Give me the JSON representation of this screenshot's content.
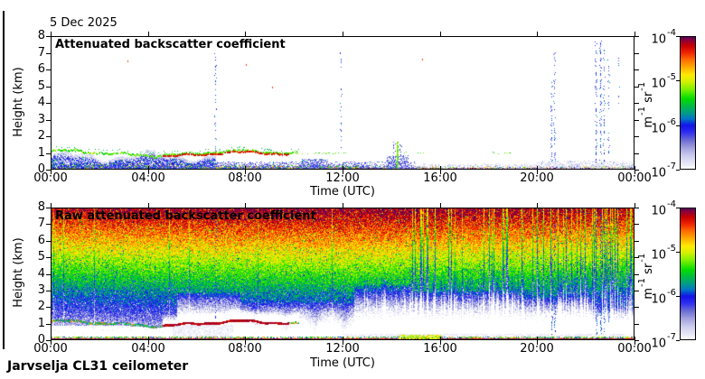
{
  "figure": {
    "date": "5 Dec 2025",
    "footer": "Jarvselja CL31 ceilometer",
    "background": "#ffffff",
    "frame_color": "#000000"
  },
  "seed": 20251205,
  "colormap": {
    "scale": "log10 of attenuated backscatter from 1e-7 (white) to 1e-4 (dark purple)",
    "stops": [
      [
        0,
        "#ffffff"
      ],
      [
        0.04,
        "#e9e9f7"
      ],
      [
        0.1,
        "#cdcdee"
      ],
      [
        0.16,
        "#a2a2de"
      ],
      [
        0.22,
        "#6b6bd4"
      ],
      [
        0.28,
        "#2d2df2"
      ],
      [
        0.33,
        "#1313e8"
      ],
      [
        0.38,
        "#0077c8"
      ],
      [
        0.43,
        "#00a080"
      ],
      [
        0.48,
        "#00bb40"
      ],
      [
        0.53,
        "#00dd00"
      ],
      [
        0.6,
        "#7af000"
      ],
      [
        0.66,
        "#d4f000"
      ],
      [
        0.71,
        "#ffec00"
      ],
      [
        0.77,
        "#ffaa00"
      ],
      [
        0.83,
        "#ff6600"
      ],
      [
        0.88,
        "#ee2200"
      ],
      [
        0.93,
        "#c80000"
      ],
      [
        0.97,
        "#8e0038"
      ],
      [
        1,
        "#58005c"
      ]
    ]
  },
  "chart_data": [
    {
      "id": "attenuated",
      "type": "heatmap",
      "title": "Attenuated backscatter coefficient",
      "xlabel": "Time (UTC)",
      "ylabel": "Height (km)",
      "x_ticks": [
        "00:00",
        "04:00",
        "08:00",
        "12:00",
        "16:00",
        "20:00",
        "00:00"
      ],
      "y_ticks": [
        "8",
        "7",
        "6",
        "5",
        "4",
        "3",
        "2",
        "1",
        "0"
      ],
      "x_range_hours": [
        0,
        24
      ],
      "y_range_km": [
        0,
        8
      ],
      "colorbar": {
        "base": "10",
        "exponents": [
          "-4",
          "-5",
          "-6",
          "-7"
        ],
        "unit_parts": [
          [
            "m",
            "-1"
          ],
          [
            "sr",
            "-1"
          ]
        ],
        "min": "1e-7",
        "max": "1e-4"
      },
      "features": {
        "surface_return_km": 0.15,
        "boundary_layer_hours": [
          0,
          6.8
        ],
        "boundary_layer_top_km": [
          0.5,
          1.0
        ],
        "aerosol_top_line": {
          "hours": [
            0,
            10.2
          ],
          "km": 1.0
        },
        "cloud_base_segment": {
          "hours": [
            4.6,
            9.8
          ],
          "km": 0.9
        },
        "green_plume": {
          "hour": 14.25,
          "km": [
            0.05,
            1.62
          ]
        },
        "green_dot_rows": [
          {
            "hours": [
              10.2,
              12.2
            ],
            "km": 0.95
          },
          {
            "hours": [
              14.45,
              15.6
            ],
            "km": 1.0
          },
          {
            "hours": [
              17.4,
              18.9
            ],
            "km": 1.0
          }
        ],
        "noise_streaks": [
          {
            "hour": 6.78,
            "km": [
              1.0,
              7.3
            ],
            "density": 0.5
          },
          {
            "hour": 11.95,
            "km": [
              1.3,
              7.1
            ],
            "density": 0.3
          },
          {
            "hour": 20.6,
            "km": [
              0.35,
              5.2
            ],
            "density": 0.5
          },
          {
            "hour": 20.72,
            "km": [
              0.5,
              7.0
            ],
            "density": 0.42
          },
          {
            "hour": 22.45,
            "km": [
              0.3,
              7.65
            ],
            "density": 0.6
          },
          {
            "hour": 22.62,
            "km": [
              0.3,
              7.75
            ],
            "density": 0.7
          },
          {
            "hour": 22.78,
            "km": [
              0.5,
              7.3
            ],
            "density": 0.5
          },
          {
            "hour": 22.95,
            "km": [
              1.0,
              6.6
            ],
            "density": 0.4
          },
          {
            "hour": 23.35,
            "km": [
              3.8,
              6.7
            ],
            "density": 0.3
          }
        ],
        "red_specks": [
          {
            "hour": 3.15,
            "km": 6.55
          },
          {
            "hour": 8.05,
            "km": 6.3
          },
          {
            "hour": 9.1,
            "km": 4.95
          },
          {
            "hour": 15.3,
            "km": 6.65
          }
        ]
      }
    },
    {
      "id": "raw",
      "type": "heatmap",
      "title": "Raw attenuated backscatter coefficient",
      "xlabel": "Time (UTC)",
      "ylabel": "Height (km)",
      "x_ticks": [
        "00:00",
        "04:00",
        "08:00",
        "12:00",
        "16:00",
        "20:00",
        "00:00"
      ],
      "y_ticks": [
        "8",
        "7",
        "6",
        "5",
        "4",
        "3",
        "2",
        "1",
        "0"
      ],
      "x_range_hours": [
        0,
        24
      ],
      "y_range_km": [
        0,
        8
      ],
      "colorbar": {
        "base": "10",
        "exponents": [
          "-4",
          "-5",
          "-6",
          "-7"
        ],
        "unit_parts": [
          [
            "m",
            "-1"
          ],
          [
            "sr",
            "-1"
          ]
        ],
        "min": "1e-7",
        "max": "1e-4"
      },
      "features": {
        "noise_profile": "background noise grows from white (<1e-7) near the surface to orange/red (~3e-5) at 8 km",
        "aerosol_top_line": {
          "hours": [
            0,
            10.2
          ],
          "km": 1.0
        },
        "cloud_base_segment": {
          "hours": [
            4.6,
            9.8
          ],
          "km": 0.9
        },
        "dropout_regions": [
          {
            "hours": [
              5.2,
              7.8
            ],
            "top_km": 2.9
          },
          {
            "hours": [
              7.8,
              12.5
            ],
            "top_km": 2.3,
            "patchy": true
          },
          {
            "hours": [
              12.5,
              14.9
            ],
            "top_km": 3.4
          },
          {
            "hours": [
              14.9,
              19.3
            ],
            "top_km": 3.0
          },
          {
            "hours": [
              19.3,
              22.3
            ],
            "top_km": 2.6
          },
          {
            "hours": [
              22.3,
              24
            ],
            "top_km": 1.9
          }
        ],
        "clear_band_below_cloud": {
          "hours": [
            0,
            5.2
          ],
          "km": [
            0.15,
            0.85
          ]
        },
        "surface_orange_patch": {
          "hours": [
            14.3,
            16.05
          ],
          "km": [
            0,
            0.32
          ]
        },
        "blue_streaking_hours": [
          14.5,
          24
        ],
        "noise_streaks": [
          {
            "hour": 6.78,
            "km": [
              1.0,
              7.3
            ],
            "density": 0.4
          },
          {
            "hour": 20.6,
            "km": [
              0.35,
              5.2
            ],
            "density": 0.5
          },
          {
            "hour": 20.72,
            "km": [
              0.5,
              7.0
            ],
            "density": 0.45
          },
          {
            "hour": 22.45,
            "km": [
              0.3,
              7.65
            ],
            "density": 0.55
          },
          {
            "hour": 22.62,
            "km": [
              0.3,
              7.75
            ],
            "density": 0.6
          },
          {
            "hour": 22.78,
            "km": [
              0.5,
              7.3
            ],
            "density": 0.5
          },
          {
            "hour": 22.95,
            "km": [
              1.0,
              6.6
            ],
            "density": 0.4
          }
        ]
      }
    }
  ]
}
